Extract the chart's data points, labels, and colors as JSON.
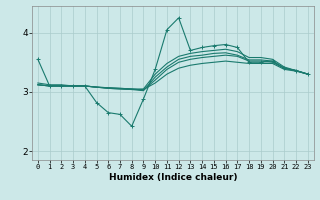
{
  "bg_color": "#cce8e8",
  "grid_color": "#aacccc",
  "line_color": "#1a7a6e",
  "xlabel": "Humidex (Indice chaleur)",
  "xlim": [
    -0.5,
    23.5
  ],
  "ylim": [
    1.85,
    4.45
  ],
  "yticks": [
    2,
    3,
    4
  ],
  "xticks": [
    0,
    1,
    2,
    3,
    4,
    5,
    6,
    7,
    8,
    9,
    10,
    11,
    12,
    13,
    14,
    15,
    16,
    17,
    18,
    19,
    20,
    21,
    22,
    23
  ],
  "series": [
    [
      3.15,
      3.12,
      3.12,
      3.1,
      3.1,
      3.08,
      3.07,
      3.06,
      3.05,
      3.04,
      3.15,
      3.3,
      3.4,
      3.45,
      3.48,
      3.5,
      3.52,
      3.5,
      3.48,
      3.48,
      3.48,
      3.38,
      3.35,
      3.3
    ],
    [
      3.12,
      3.1,
      3.1,
      3.1,
      3.1,
      3.08,
      3.07,
      3.06,
      3.05,
      3.03,
      3.2,
      3.38,
      3.5,
      3.55,
      3.58,
      3.6,
      3.62,
      3.6,
      3.52,
      3.52,
      3.5,
      3.4,
      3.36,
      3.3
    ],
    [
      3.12,
      3.1,
      3.1,
      3.1,
      3.1,
      3.08,
      3.06,
      3.05,
      3.04,
      3.02,
      3.25,
      3.42,
      3.55,
      3.6,
      3.62,
      3.65,
      3.66,
      3.62,
      3.54,
      3.54,
      3.52,
      3.4,
      3.36,
      3.3
    ],
    [
      3.12,
      3.1,
      3.1,
      3.1,
      3.1,
      3.08,
      3.06,
      3.05,
      3.04,
      3.05,
      3.3,
      3.48,
      3.6,
      3.65,
      3.68,
      3.7,
      3.72,
      3.68,
      3.58,
      3.58,
      3.55,
      3.42,
      3.36,
      3.3
    ],
    [
      3.55,
      3.1,
      3.1,
      3.1,
      3.1,
      2.82,
      2.65,
      2.62,
      2.42,
      2.88,
      3.38,
      4.05,
      4.25,
      3.7,
      3.75,
      3.78,
      3.8,
      3.75,
      3.5,
      3.5,
      3.52,
      3.4,
      3.36,
      3.3
    ]
  ],
  "smooth_series": [
    0,
    1,
    2,
    3
  ],
  "marker_series": [
    4
  ],
  "title": ""
}
